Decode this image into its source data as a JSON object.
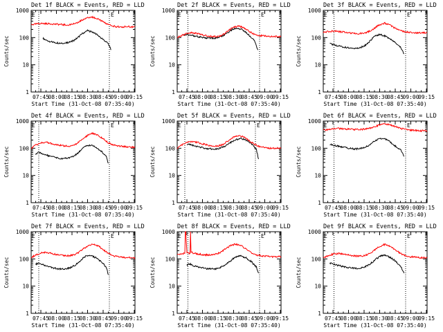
{
  "page": {
    "background": "#ffffff"
  },
  "colors": {
    "events": "#000000",
    "lld": "#ff0000",
    "axis": "#000000"
  },
  "common": {
    "xlabel": "Start Time (31-Oct-08 07:35:40)",
    "ylabel": "Counts/sec",
    "x_ticks": [
      "07:45",
      "08:00",
      "08:15",
      "08:30",
      "08:45",
      "09:00",
      "09:15"
    ],
    "y_ticks": [
      "1",
      "10",
      "100",
      "1000"
    ],
    "marker_left": "E",
    "marker_right": "E"
  },
  "chart_data": [
    {
      "type": "line",
      "title": "Det 1f BLACK = Events, RED = LLD",
      "yscale": "log",
      "ylim": [
        1,
        1000
      ],
      "xlim_minutes": [
        35.67,
        135.67
      ],
      "markers_minutes": [
        43,
        111
      ],
      "series": [
        {
          "name": "BLACK = Events",
          "color": "#000000",
          "x": [
            47,
            50,
            55,
            60,
            65,
            70,
            75,
            80,
            85,
            90,
            95,
            100,
            105,
            110,
            112.5
          ],
          "y": [
            95,
            80,
            70,
            65,
            62,
            64,
            72,
            95,
            140,
            180,
            160,
            120,
            85,
            60,
            35
          ]
        },
        {
          "name": "RED = LLD",
          "color": "#ff0000",
          "x": [
            35.67,
            45,
            55,
            65,
            70,
            75,
            80,
            85,
            90,
            95,
            100,
            105,
            110,
            115,
            120,
            125,
            130,
            135.67
          ],
          "y": [
            300,
            330,
            320,
            300,
            290,
            300,
            360,
            440,
            540,
            560,
            480,
            380,
            300,
            260,
            250,
            250,
            250,
            250
          ]
        }
      ]
    },
    {
      "type": "line",
      "title": "Det 2f BLACK = Events, RED = LLD",
      "yscale": "log",
      "ylim": [
        1,
        1000
      ],
      "xlim_minutes": [
        35.67,
        135.67
      ],
      "markers_minutes": [
        46,
        115
      ],
      "series": [
        {
          "name": "BLACK = Events",
          "color": "#000000",
          "x": [
            42,
            45,
            50,
            55,
            60,
            65,
            70,
            75,
            80,
            85,
            90,
            95,
            100,
            105,
            110,
            113.5
          ],
          "y": [
            125,
            130,
            120,
            110,
            100,
            95,
            95,
            100,
            120,
            160,
            210,
            220,
            180,
            120,
            80,
            35
          ]
        },
        {
          "name": "RED = LLD",
          "color": "#ff0000",
          "x": [
            35.67,
            40,
            45,
            50,
            55,
            60,
            65,
            70,
            75,
            80,
            85,
            90,
            95,
            100,
            105,
            110,
            115,
            120,
            125,
            130,
            135.67
          ],
          "y": [
            100,
            120,
            145,
            150,
            140,
            125,
            115,
            110,
            110,
            130,
            180,
            240,
            260,
            230,
            170,
            130,
            120,
            115,
            110,
            110,
            110
          ]
        }
      ]
    },
    {
      "type": "line",
      "title": "Det 3f BLACK = Events, RED = LLD",
      "yscale": "log",
      "ylim": [
        1,
        1000
      ],
      "xlim_minutes": [
        35.67,
        135.67
      ],
      "markers_minutes": [
        46,
        115
      ],
      "series": [
        {
          "name": "BLACK = Events",
          "color": "#000000",
          "x": [
            42,
            45,
            50,
            55,
            60,
            65,
            70,
            75,
            80,
            85,
            90,
            95,
            100,
            105,
            110,
            113.5
          ],
          "y": [
            60,
            55,
            50,
            45,
            42,
            40,
            42,
            48,
            70,
            110,
            130,
            115,
            90,
            65,
            45,
            25
          ]
        },
        {
          "name": "RED = LLD",
          "color": "#ff0000",
          "x": [
            35.67,
            40,
            45,
            50,
            55,
            60,
            65,
            70,
            75,
            80,
            85,
            90,
            95,
            100,
            105,
            110,
            115,
            120,
            125,
            130,
            135.67
          ],
          "y": [
            150,
            165,
            175,
            170,
            160,
            150,
            145,
            140,
            145,
            170,
            220,
            300,
            340,
            290,
            220,
            180,
            160,
            155,
            150,
            150,
            150
          ]
        }
      ]
    },
    {
      "type": "line",
      "title": "Det 4f BLACK = Events, RED = LLD",
      "yscale": "log",
      "ylim": [
        1,
        1000
      ],
      "xlim_minutes": [
        35.67,
        135.67
      ],
      "markers_minutes": [
        43,
        111
      ],
      "series": [
        {
          "name": "BLACK = Events",
          "color": "#000000",
          "x": [
            40,
            43,
            48,
            53,
            58,
            63,
            68,
            73,
            78,
            83,
            88,
            93,
            98,
            103,
            108,
            110
          ],
          "y": [
            60,
            70,
            60,
            52,
            46,
            42,
            42,
            45,
            55,
            80,
            120,
            130,
            110,
            80,
            50,
            28
          ]
        },
        {
          "name": "RED = LLD",
          "color": "#ff0000",
          "x": [
            35.67,
            40,
            45,
            50,
            55,
            60,
            65,
            70,
            75,
            80,
            85,
            90,
            95,
            100,
            105,
            110,
            115,
            120,
            125,
            130,
            135.67
          ],
          "y": [
            100,
            130,
            160,
            165,
            150,
            135,
            125,
            120,
            125,
            150,
            210,
            300,
            350,
            310,
            220,
            160,
            130,
            120,
            115,
            110,
            110
          ]
        }
      ]
    },
    {
      "type": "line",
      "title": "Det 5f BLACK = Events, RED = LLD",
      "yscale": "log",
      "ylim": [
        1,
        1000
      ],
      "xlim_minutes": [
        35.67,
        135.67
      ],
      "markers_minutes": [
        43,
        111
      ],
      "series": [
        {
          "name": "BLACK = Events",
          "color": "#000000",
          "x": [
            45,
            48,
            52,
            57,
            62,
            67,
            72,
            77,
            82,
            87,
            92,
            97,
            102,
            107,
            112,
            114
          ],
          "y": [
            130,
            140,
            125,
            110,
            100,
            95,
            95,
            100,
            120,
            160,
            210,
            230,
            200,
            150,
            90,
            40
          ]
        },
        {
          "name": "RED = LLD",
          "color": "#ff0000",
          "x": [
            35.67,
            40,
            45,
            50,
            55,
            60,
            65,
            70,
            75,
            80,
            85,
            90,
            95,
            100,
            105,
            110,
            115,
            120,
            125,
            130,
            135.67
          ],
          "y": [
            100,
            130,
            160,
            175,
            165,
            145,
            130,
            120,
            120,
            140,
            190,
            260,
            290,
            260,
            190,
            140,
            115,
            105,
            100,
            100,
            100
          ]
        }
      ]
    },
    {
      "type": "line",
      "title": "Det 6f BLACK = Events, RED = LLD",
      "yscale": "log",
      "ylim": [
        1,
        1000
      ],
      "xlim_minutes": [
        35.67,
        135.67
      ],
      "markers_minutes": [
        46,
        115
      ],
      "series": [
        {
          "name": "BLACK = Events",
          "color": "#000000",
          "x": [
            42,
            45,
            50,
            55,
            60,
            65,
            70,
            75,
            80,
            85,
            90,
            95,
            100,
            105,
            110,
            113.5
          ],
          "y": [
            140,
            130,
            120,
            110,
            100,
            95,
            95,
            105,
            130,
            180,
            230,
            220,
            170,
            120,
            90,
            50
          ]
        },
        {
          "name": "RED = LLD",
          "color": "#ff0000",
          "x": [
            35.67,
            40,
            45,
            50,
            55,
            60,
            65,
            70,
            75,
            80,
            85,
            90,
            95,
            100,
            105,
            110,
            115,
            120,
            125,
            130,
            135.67
          ],
          "y": [
            470,
            480,
            520,
            530,
            520,
            500,
            490,
            490,
            500,
            540,
            620,
            720,
            780,
            720,
            620,
            540,
            490,
            460,
            450,
            440,
            440
          ]
        }
      ]
    },
    {
      "type": "line",
      "title": "Det 7f BLACK = Events, RED = LLD",
      "yscale": "log",
      "ylim": [
        1,
        1000
      ],
      "xlim_minutes": [
        35.67,
        135.67
      ],
      "markers_minutes": [
        43,
        111
      ],
      "series": [
        {
          "name": "BLACK = Events",
          "color": "#000000",
          "x": [
            40,
            43,
            48,
            53,
            58,
            63,
            68,
            73,
            78,
            83,
            88,
            93,
            98,
            103,
            108,
            110
          ],
          "y": [
            65,
            70,
            60,
            52,
            46,
            42,
            42,
            47,
            58,
            85,
            125,
            135,
            110,
            80,
            50,
            26
          ]
        },
        {
          "name": "RED = LLD",
          "color": "#ff0000",
          "x": [
            35.67,
            40,
            45,
            50,
            55,
            60,
            65,
            70,
            75,
            80,
            85,
            90,
            95,
            100,
            105,
            110,
            115,
            120,
            125,
            130,
            135.67
          ],
          "y": [
            110,
            140,
            165,
            175,
            160,
            145,
            135,
            130,
            135,
            160,
            220,
            300,
            350,
            310,
            220,
            160,
            130,
            120,
            115,
            110,
            110
          ]
        }
      ]
    },
    {
      "type": "line",
      "title": "Det 8f BLACK = Events, RED = LLD",
      "yscale": "log",
      "ylim": [
        1,
        1000
      ],
      "xlim_minutes": [
        35.67,
        135.67
      ],
      "markers_minutes": [
        46,
        115
      ],
      "series": [
        {
          "name": "BLACK = Events",
          "color": "#000000",
          "x": [
            45,
            48,
            52,
            57,
            62,
            67,
            72,
            77,
            82,
            87,
            92,
            97,
            102,
            107,
            112,
            114
          ],
          "y": [
            60,
            65,
            55,
            50,
            45,
            43,
            43,
            48,
            60,
            85,
            120,
            130,
            110,
            80,
            50,
            30
          ]
        },
        {
          "name": "RED = LLD",
          "color": "#ff0000",
          "x": [
            35.67,
            40,
            43,
            43.5,
            44,
            45,
            48,
            48.5,
            49,
            52,
            57,
            62,
            67,
            72,
            77,
            82,
            87,
            92,
            97,
            102,
            107,
            112,
            117,
            122,
            127,
            135.67
          ],
          "y": [
            140,
            150,
            160,
            1000,
            1000,
            170,
            160,
            1000,
            175,
            160,
            150,
            140,
            140,
            145,
            170,
            230,
            310,
            350,
            310,
            230,
            170,
            140,
            130,
            125,
            120,
            120
          ]
        }
      ]
    },
    {
      "type": "line",
      "title": "Det 9f BLACK = Events, RED = LLD",
      "yscale": "log",
      "ylim": [
        1,
        1000
      ],
      "xlim_minutes": [
        35.67,
        135.67
      ],
      "markers_minutes": [
        46,
        115
      ],
      "series": [
        {
          "name": "BLACK = Events",
          "color": "#000000",
          "x": [
            42,
            45,
            50,
            55,
            60,
            65,
            70,
            75,
            80,
            85,
            90,
            95,
            100,
            105,
            110,
            113.5
          ],
          "y": [
            70,
            65,
            58,
            52,
            48,
            45,
            45,
            50,
            62,
            88,
            125,
            140,
            115,
            85,
            55,
            30
          ]
        },
        {
          "name": "RED = LLD",
          "color": "#ff0000",
          "x": [
            35.67,
            40,
            45,
            50,
            55,
            60,
            65,
            70,
            75,
            80,
            85,
            90,
            95,
            100,
            105,
            110,
            115,
            120,
            125,
            130,
            135.67
          ],
          "y": [
            110,
            130,
            150,
            160,
            150,
            140,
            130,
            125,
            130,
            155,
            210,
            290,
            340,
            300,
            220,
            160,
            130,
            120,
            115,
            110,
            110
          ]
        }
      ]
    }
  ]
}
